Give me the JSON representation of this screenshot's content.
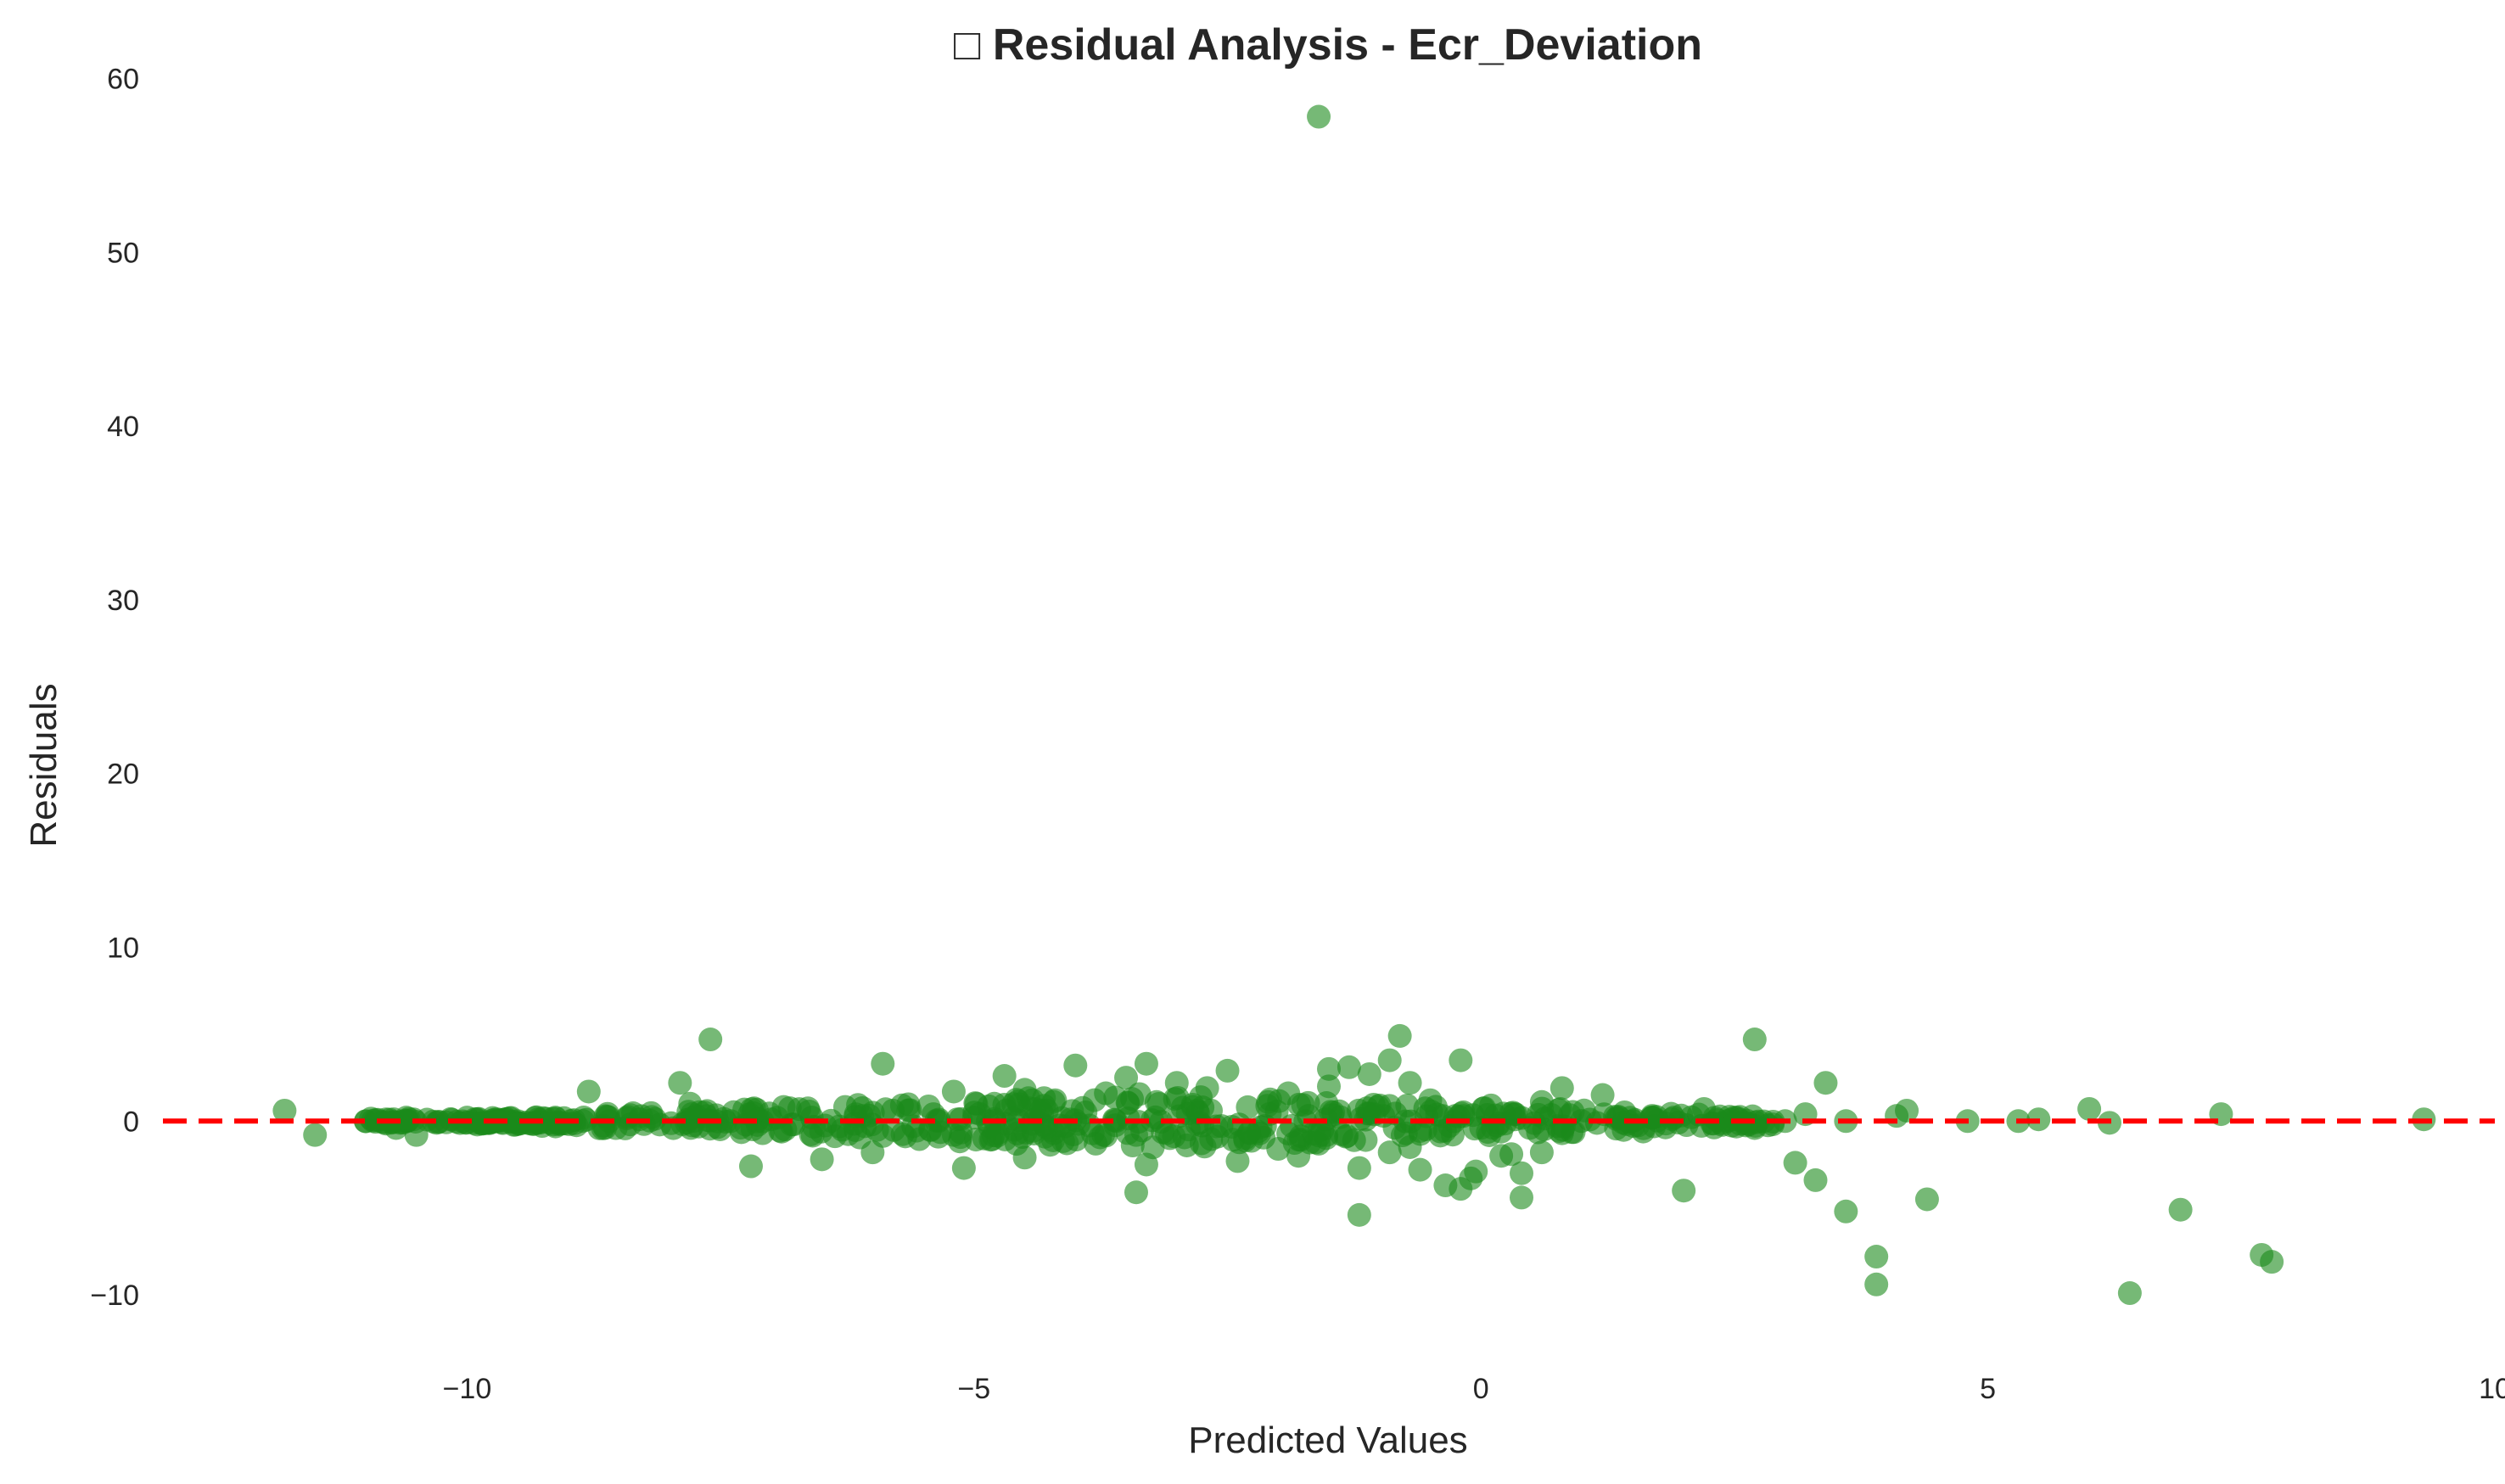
{
  "chart_data": {
    "type": "scatter",
    "title": "□ Residual Analysis - Ecr_Deviation",
    "xlabel": "Predicted Values",
    "ylabel": "Residuals",
    "xlim": [
      -13,
      10
    ],
    "ylim": [
      -14,
      61
    ],
    "x_ticks": [
      -10,
      -5,
      0,
      5,
      10
    ],
    "x_tick_labels": [
      "−10",
      "−5",
      "0",
      "5",
      "10"
    ],
    "y_ticks": [
      -10,
      0,
      10,
      20,
      30,
      40,
      50,
      60
    ],
    "y_tick_labels": [
      "−10",
      "0",
      "10",
      "20",
      "30",
      "40",
      "50",
      "60"
    ],
    "grid": false,
    "reference_line": {
      "y": 0,
      "style": "dashed",
      "color": "#ff0000"
    },
    "point_color": "#1a8a1a",
    "points": [
      [
        -11.8,
        0.6
      ],
      [
        -11.5,
        -0.8
      ],
      [
        -10.8,
        0.1
      ],
      [
        -10.7,
        -0.4
      ],
      [
        -10.6,
        0.2
      ],
      [
        -10.5,
        -0.8
      ],
      [
        -10.3,
        -0.1
      ],
      [
        -10.0,
        0.2
      ],
      [
        -9.9,
        -0.2
      ],
      [
        -9.7,
        0.1
      ],
      [
        -9.5,
        -0.1
      ],
      [
        -9.3,
        0.1
      ],
      [
        -9.1,
        -0.1
      ],
      [
        -8.8,
        1.7
      ],
      [
        -8.6,
        0.0
      ],
      [
        -8.3,
        0.1
      ],
      [
        -8.1,
        -0.2
      ],
      [
        -7.9,
        2.2
      ],
      [
        -7.8,
        1.0
      ],
      [
        -7.6,
        4.7
      ],
      [
        -7.4,
        0.0
      ],
      [
        -7.2,
        -2.6
      ],
      [
        -7.0,
        0.1
      ],
      [
        -6.8,
        -0.2
      ],
      [
        -6.6,
        0.2
      ],
      [
        -6.5,
        -2.2
      ],
      [
        -6.3,
        -0.5
      ],
      [
        -6.1,
        0.3
      ],
      [
        -6.0,
        -1.8
      ],
      [
        -5.9,
        3.3
      ],
      [
        -5.8,
        0.6
      ],
      [
        -5.6,
        -0.3
      ],
      [
        -5.4,
        0.4
      ],
      [
        -5.2,
        -0.8
      ],
      [
        -5.2,
        1.7
      ],
      [
        -5.1,
        -2.7
      ],
      [
        -5.0,
        0.2
      ],
      [
        -4.9,
        -1.0
      ],
      [
        -4.8,
        1.0
      ],
      [
        -4.7,
        2.6
      ],
      [
        -4.6,
        -0.5
      ],
      [
        -4.5,
        -2.1
      ],
      [
        -4.5,
        1.8
      ],
      [
        -4.4,
        0.7
      ],
      [
        -4.3,
        -0.9
      ],
      [
        -4.2,
        1.2
      ],
      [
        -4.1,
        -0.3
      ],
      [
        -4.0,
        3.2
      ],
      [
        -3.9,
        0.5
      ],
      [
        -3.8,
        -1.3
      ],
      [
        -3.7,
        1.6
      ],
      [
        -3.6,
        0.0
      ],
      [
        -3.5,
        2.5
      ],
      [
        -3.4,
        -0.8
      ],
      [
        -3.4,
        -4.1
      ],
      [
        -3.3,
        3.3
      ],
      [
        -3.3,
        -2.5
      ],
      [
        -3.2,
        1.1
      ],
      [
        -3.1,
        -0.7
      ],
      [
        -3.0,
        2.2
      ],
      [
        -2.9,
        -1.4
      ],
      [
        -2.8,
        0.6
      ],
      [
        -2.7,
        1.9
      ],
      [
        -2.6,
        -0.9
      ],
      [
        -2.5,
        2.9
      ],
      [
        -2.4,
        -2.3
      ],
      [
        -2.3,
        0.8
      ],
      [
        -2.2,
        -0.6
      ],
      [
        -2.1,
        1.1
      ],
      [
        -2.0,
        -1.6
      ],
      [
        -1.9,
        1.6
      ],
      [
        -1.8,
        -2.0
      ],
      [
        -1.7,
        0.3
      ],
      [
        -1.6,
        57.8
      ],
      [
        -1.6,
        -1.3
      ],
      [
        -1.5,
        3.0
      ],
      [
        -1.5,
        2.0
      ],
      [
        -1.3,
        3.1
      ],
      [
        -1.2,
        -2.7
      ],
      [
        -1.2,
        -5.4
      ],
      [
        -1.1,
        2.7
      ],
      [
        -1.0,
        0.9
      ],
      [
        -0.9,
        3.5
      ],
      [
        -0.9,
        -1.8
      ],
      [
        -0.8,
        4.9
      ],
      [
        -0.7,
        2.2
      ],
      [
        -0.7,
        -1.5
      ],
      [
        -0.6,
        -2.8
      ],
      [
        -0.5,
        1.2
      ],
      [
        -0.4,
        -0.6
      ],
      [
        -0.35,
        -3.7
      ],
      [
        -0.2,
        -3.9
      ],
      [
        -0.2,
        3.5
      ],
      [
        -0.1,
        -3.3
      ],
      [
        -0.05,
        -2.9
      ],
      [
        0.1,
        0.9
      ],
      [
        0.2,
        -2.0
      ],
      [
        0.3,
        -1.9
      ],
      [
        0.4,
        -3.0
      ],
      [
        0.4,
        -4.4
      ],
      [
        0.6,
        -1.8
      ],
      [
        0.6,
        1.1
      ],
      [
        0.8,
        1.9
      ],
      [
        0.8,
        -0.7
      ],
      [
        1.2,
        1.5
      ],
      [
        1.5,
        0.0
      ],
      [
        1.6,
        -0.6
      ],
      [
        1.9,
        0.2
      ],
      [
        2.0,
        -4.0
      ],
      [
        2.2,
        0.7
      ],
      [
        2.5,
        0.2
      ],
      [
        2.7,
        4.7
      ],
      [
        2.7,
        -0.4
      ],
      [
        3.0,
        0.0
      ],
      [
        3.1,
        -2.4
      ],
      [
        3.2,
        0.4
      ],
      [
        3.3,
        -3.4
      ],
      [
        3.4,
        2.2
      ],
      [
        3.6,
        -5.2
      ],
      [
        3.6,
        0.0
      ],
      [
        3.9,
        -7.8
      ],
      [
        3.9,
        -9.4
      ],
      [
        4.1,
        0.3
      ],
      [
        4.2,
        0.6
      ],
      [
        4.4,
        -4.5
      ],
      [
        4.8,
        0.0
      ],
      [
        5.3,
        0.0
      ],
      [
        5.5,
        0.1
      ],
      [
        6.0,
        0.7
      ],
      [
        6.2,
        -0.1
      ],
      [
        6.4,
        -9.9
      ],
      [
        6.9,
        -5.1
      ],
      [
        7.3,
        0.4
      ],
      [
        7.7,
        -7.7
      ],
      [
        7.8,
        -8.1
      ],
      [
        9.3,
        0.1
      ]
    ]
  }
}
